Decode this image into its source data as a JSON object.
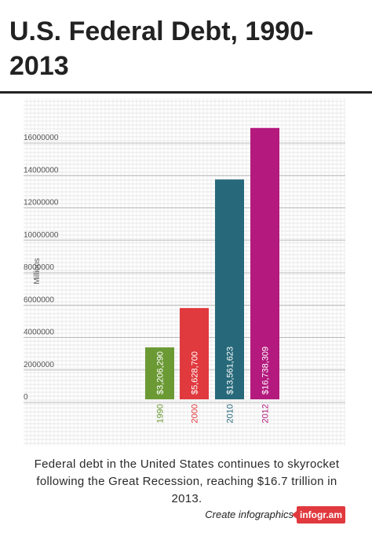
{
  "title": "U.S. Federal Debt, 1990-2013",
  "description": "Federal debt in the United States continues to skyrocket following the Great Recession, reaching $16.7 trillion in 2013.",
  "footer": {
    "create_text": "Create infographics",
    "brand": "infogr.am"
  },
  "colors": {
    "background": "#ffffff",
    "grid": "#c9c9c9",
    "text": "#444444"
  },
  "chart_data": {
    "type": "bar",
    "ylabel": "Millions",
    "ylim": [
      0,
      16800000
    ],
    "yticks": [
      0,
      2000000,
      4000000,
      6000000,
      8000000,
      10000000,
      12000000,
      14000000,
      16000000
    ],
    "ytick_labels": [
      "0",
      "2000000",
      "4000000",
      "6000000",
      "8000000",
      "10000000",
      "12000000",
      "14000000",
      "16000000"
    ],
    "categories": [
      "1990",
      "2000",
      "2010",
      "2012"
    ],
    "values": [
      3206290,
      5628700,
      13561623,
      16738309
    ],
    "value_labels": [
      "$3,206,290",
      "$5,628,700",
      "$13,561,623",
      "$16,738,309"
    ],
    "bar_colors": [
      "#6b9a35",
      "#e0393e",
      "#27697a",
      "#b41a7e"
    ],
    "grid": true
  }
}
